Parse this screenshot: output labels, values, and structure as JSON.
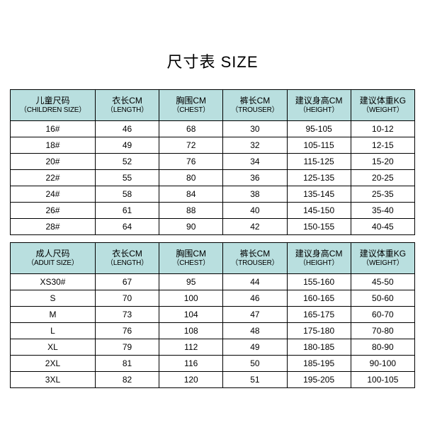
{
  "title": "尺寸表 SIZE",
  "header_bg": "#b9dfdf",
  "border_color": "#000000",
  "title_fontsize": 22,
  "header_fontsize_cn": 12,
  "header_fontsize_en": 10,
  "cell_fontsize": 12,
  "columns": [
    {
      "cn": "儿童尺码",
      "en": "（CHILDREN SIZE）"
    },
    {
      "cn": "衣长CM",
      "en": "（LENGTH）"
    },
    {
      "cn": "胸围CM",
      "en": "（CHEST）"
    },
    {
      "cn": "裤长CM",
      "en": "（TROUSER）"
    },
    {
      "cn": "建议身高CM",
      "en": "（HEIGHT）"
    },
    {
      "cn": "建议体重KG",
      "en": "（WEIGHT）"
    }
  ],
  "children_rows": [
    [
      "16#",
      "46",
      "68",
      "30",
      "95-105",
      "10-12"
    ],
    [
      "18#",
      "49",
      "72",
      "32",
      "105-115",
      "12-15"
    ],
    [
      "20#",
      "52",
      "76",
      "34",
      "115-125",
      "15-20"
    ],
    [
      "22#",
      "55",
      "80",
      "36",
      "125-135",
      "20-25"
    ],
    [
      "24#",
      "58",
      "84",
      "38",
      "135-145",
      "25-35"
    ],
    [
      "26#",
      "61",
      "88",
      "40",
      "145-150",
      "35-40"
    ],
    [
      "28#",
      "64",
      "90",
      "42",
      "150-155",
      "40-45"
    ]
  ],
  "adult_columns": [
    {
      "cn": "成人尺码",
      "en": "（ADUIT SIZE）"
    },
    {
      "cn": "衣长CM",
      "en": "（LENGTH）"
    },
    {
      "cn": "胸围CM",
      "en": "（CHEST）"
    },
    {
      "cn": "裤长CM",
      "en": "（TROUSER）"
    },
    {
      "cn": "建议身高CM",
      "en": "（HEIGHT）"
    },
    {
      "cn": "建议体重KG",
      "en": "（WEIGHT）"
    }
  ],
  "adult_rows": [
    [
      "XS30#",
      "67",
      "95",
      "44",
      "155-160",
      "45-50"
    ],
    [
      "S",
      "70",
      "100",
      "46",
      "160-165",
      "50-60"
    ],
    [
      "M",
      "73",
      "104",
      "47",
      "165-175",
      "60-70"
    ],
    [
      "L",
      "76",
      "108",
      "48",
      "175-180",
      "70-80"
    ],
    [
      "XL",
      "79",
      "112",
      "49",
      "180-185",
      "80-90"
    ],
    [
      "2XL",
      "81",
      "116",
      "50",
      "185-195",
      "90-100"
    ],
    [
      "3XL",
      "82",
      "120",
      "51",
      "195-205",
      "100-105"
    ]
  ]
}
